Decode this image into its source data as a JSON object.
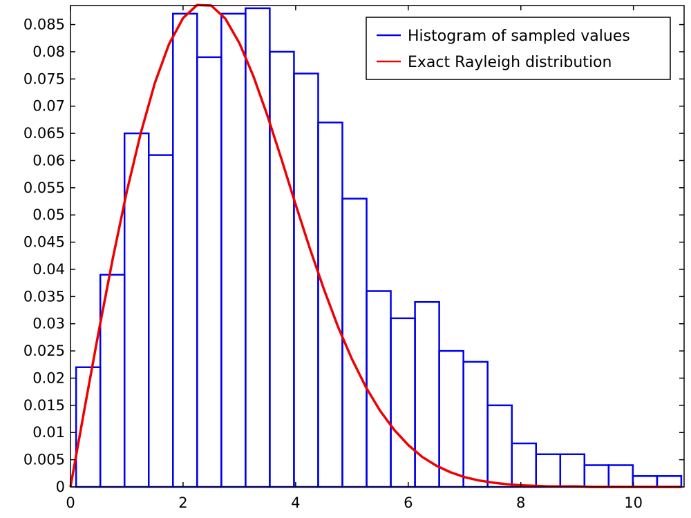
{
  "chart_data": {
    "type": "bar",
    "title": "",
    "xlabel": "",
    "ylabel": "",
    "xlim": [
      0,
      10.9
    ],
    "ylim": [
      0,
      0.0885
    ],
    "grid": false,
    "legend_position": "top-right",
    "x_ticks": [
      0,
      2,
      4,
      6,
      8,
      10
    ],
    "x_tick_labels": [
      "0",
      "2",
      "4",
      "6",
      "8",
      "10"
    ],
    "y_ticks": [
      0,
      0.005,
      0.01,
      0.015,
      0.02,
      0.025,
      0.03,
      0.035,
      0.04,
      0.045,
      0.05,
      0.055,
      0.06,
      0.065,
      0.07,
      0.075,
      0.08,
      0.085
    ],
    "y_tick_labels": [
      "0",
      "0.005",
      "0.01",
      "0.015",
      "0.02",
      "0.025",
      "0.03",
      "0.035",
      "0.04",
      "0.045",
      "0.05",
      "0.055",
      "0.06",
      "0.065",
      "0.07",
      "0.075",
      "0.08",
      "0.085"
    ],
    "legend": [
      {
        "label": "Histogram of sampled values",
        "color": "#0000ee"
      },
      {
        "label": "Exact Rayleigh distribution",
        "color": "#ee0000"
      }
    ],
    "histogram": {
      "name": "Histogram of sampled values",
      "color": "#0000ee",
      "bin_edges": [
        0.1,
        0.53,
        0.96,
        1.39,
        1.82,
        2.25,
        2.68,
        3.11,
        3.54,
        3.97,
        4.4,
        4.83,
        5.26,
        5.69,
        6.12,
        6.55,
        6.98,
        7.41,
        7.84,
        8.27,
        8.7,
        9.13,
        9.56,
        9.99,
        10.42,
        10.85
      ],
      "values": [
        0.022,
        0.039,
        0.065,
        0.061,
        0.087,
        0.079,
        0.087,
        0.088,
        0.08,
        0.076,
        0.067,
        0.053,
        0.036,
        0.031,
        0.034,
        0.025,
        0.023,
        0.015,
        0.008,
        0.006,
        0.006,
        0.004,
        0.004,
        0.002,
        0.002
      ]
    },
    "curve": {
      "name": "Exact Rayleigh distribution",
      "color": "#ee0000",
      "x": [
        0.0,
        0.25,
        0.5,
        0.75,
        1.0,
        1.25,
        1.5,
        1.75,
        2.0,
        2.25,
        2.5,
        2.75,
        3.0,
        3.25,
        3.5,
        3.75,
        4.0,
        4.25,
        4.5,
        4.75,
        5.0,
        5.25,
        5.5,
        5.75,
        6.0,
        6.25,
        6.5,
        6.75,
        7.0,
        7.25,
        7.5,
        7.75,
        8.0,
        8.25,
        8.5,
        8.75,
        9.0,
        9.25,
        9.5,
        9.75,
        10.0,
        10.25,
        10.5,
        10.85
      ],
      "y": [
        0.0,
        0.0144,
        0.0285,
        0.0419,
        0.0543,
        0.0651,
        0.0743,
        0.0814,
        0.0862,
        0.0886,
        0.0885,
        0.0861,
        0.0816,
        0.0755,
        0.0682,
        0.0602,
        0.0519,
        0.0439,
        0.0364,
        0.0295,
        0.0235,
        0.0183,
        0.014,
        0.0105,
        0.0077,
        0.0055,
        0.0039,
        0.0027,
        0.0018,
        0.0012,
        0.0008,
        0.0005,
        0.0003,
        0.0002,
        0.0001,
        0.0001,
        0.0001,
        0.0,
        0.0,
        0.0,
        0.0,
        0.0,
        0.0,
        0.0
      ]
    }
  }
}
